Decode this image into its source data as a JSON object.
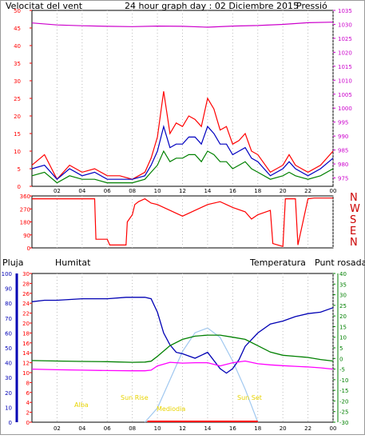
{
  "colors": {
    "wind": "#ff0000",
    "wind_avg": "#0000c0",
    "wind_green": "#008000",
    "pressure": "#cc00cc",
    "direction": "#ff0000",
    "humidity": "#0000b4",
    "temperature": "#008000",
    "dewpoint": "#ff00ff",
    "rain": "#ff0000",
    "solar": "#a0c8f0",
    "sun_labels": "#e8d400",
    "grid": "#bbbbbb"
  },
  "header": {
    "left_title": "Velocitat del vent",
    "center_title": "24 hour graph day : 02 Diciembre 2015",
    "right_title": "Pressió"
  },
  "compass": [
    "N",
    "W",
    "S",
    "E",
    "N"
  ],
  "bottom_header": {
    "rain": "Pluja",
    "humidity": "Humitat",
    "temperature": "Temperatura",
    "dewpoint": "Punt rosada"
  },
  "sun_labels": {
    "twilight_morning": "Alba",
    "sunrise": "Sun Rise",
    "noon": "Mediodia",
    "sunset": "Sun Set"
  },
  "chart_data": [
    {
      "type": "line",
      "title": "24 hour graph day : 02 Diciembre 2015",
      "x_ticks": [
        "02",
        "04",
        "06",
        "08",
        "10",
        "12",
        "14",
        "16",
        "18",
        "20",
        "22",
        "00"
      ],
      "y_left_label": "Velocitat del vent",
      "y_left_ticks": [
        0,
        5,
        10,
        15,
        20,
        25,
        30,
        35,
        40,
        45,
        50
      ],
      "y_left_range": [
        0,
        50
      ],
      "y_right_label": "Pressió",
      "y_right_ticks": [
        975,
        980,
        985,
        990,
        995,
        1000,
        1005,
        1010,
        1015,
        1020,
        1025,
        1030,
        1035
      ],
      "y_right_range": [
        972,
        1035
      ],
      "series": [
        {
          "name": "Velocitat del vent",
          "axis": "left",
          "x_hours": [
            0,
            1,
            2,
            3,
            4,
            5,
            6,
            7,
            8,
            9,
            9.5,
            10,
            10.5,
            11,
            11.5,
            12,
            12.5,
            13,
            13.5,
            14,
            14.5,
            15,
            15.5,
            16,
            16.5,
            17,
            17.5,
            18,
            19,
            20,
            20.5,
            21,
            22,
            23,
            24
          ],
          "values": [
            6,
            9,
            2,
            6,
            4,
            5,
            3,
            3,
            2,
            4,
            8,
            14,
            27,
            15,
            18,
            17,
            20,
            19,
            17,
            25,
            22,
            16,
            17,
            12,
            13,
            15,
            10,
            9,
            4,
            6,
            9,
            6,
            4,
            6,
            10
          ]
        },
        {
          "axis": "left",
          "x_hours": [
            0,
            1,
            2,
            3,
            4,
            5,
            6,
            7,
            8,
            9,
            9.5,
            10,
            10.5,
            11,
            11.5,
            12,
            12.5,
            13,
            13.5,
            14,
            14.5,
            15,
            15.5,
            16,
            16.5,
            17,
            17.5,
            18,
            19,
            20,
            20.5,
            21,
            22,
            23,
            24
          ],
          "values": [
            5,
            6,
            2,
            5,
            3,
            4,
            2,
            2,
            2,
            3,
            6,
            10,
            17,
            11,
            12,
            12,
            14,
            14,
            12,
            17,
            15,
            12,
            12,
            9,
            10,
            11,
            8,
            7,
            3,
            5,
            7,
            5,
            3,
            5,
            8
          ]
        },
        {
          "axis": "left",
          "x_hours": [
            0,
            1,
            2,
            3,
            4,
            5,
            6,
            7,
            8,
            9,
            9.5,
            10,
            10.5,
            11,
            11.5,
            12,
            12.5,
            13,
            13.5,
            14,
            14.5,
            15,
            15.5,
            16,
            16.5,
            17,
            17.5,
            18,
            19,
            20,
            20.5,
            21,
            22,
            23,
            24
          ],
          "values": [
            3,
            4,
            1,
            3,
            2,
            2,
            1,
            1,
            1,
            2,
            4,
            6,
            10,
            7,
            8,
            8,
            9,
            9,
            7,
            10,
            9,
            7,
            7,
            5,
            6,
            7,
            5,
            4,
            2,
            3,
            4,
            3,
            2,
            3,
            5
          ]
        },
        {
          "name": "Pressió",
          "axis": "right",
          "x_hours": [
            0,
            2,
            4,
            6,
            8,
            10,
            12,
            14,
            16,
            18,
            20,
            22,
            24
          ],
          "values": [
            1030.5,
            1029.8,
            1029.5,
            1029.3,
            1029.2,
            1029.4,
            1029.3,
            1029.0,
            1029.4,
            1029.6,
            1030.0,
            1030.6,
            1030.8
          ]
        }
      ]
    },
    {
      "type": "line",
      "y_ticks": [
        0,
        90,
        180,
        270,
        360
      ],
      "y_range": [
        0,
        360
      ],
      "series": [
        {
          "axis": "left",
          "x_hours": [
            0,
            5,
            5.1,
            6,
            6.2,
            7.5,
            7.6,
            8,
            8.2,
            8.5,
            9,
            9.5,
            10,
            11,
            12,
            13,
            14,
            15,
            16,
            17,
            17.5,
            18,
            19,
            19.2,
            20,
            20.2,
            21,
            21.2,
            22,
            22.5,
            24
          ],
          "values": [
            340,
            340,
            60,
            60,
            20,
            20,
            180,
            230,
            300,
            320,
            340,
            310,
            300,
            260,
            220,
            260,
            300,
            320,
            280,
            250,
            200,
            230,
            260,
            30,
            10,
            340,
            340,
            20,
            340,
            345,
            345
          ]
        }
      ]
    },
    {
      "type": "line",
      "y_rain_label": "Pluja",
      "y_rain_ticks": [
        0,
        2,
        4,
        6,
        8,
        10,
        12,
        14,
        16,
        18,
        20,
        22,
        24,
        26,
        28,
        30
      ],
      "y_rain_range": [
        0,
        30
      ],
      "y_humidity_label": "Humitat",
      "y_humidity_ticks": [
        0,
        10,
        20,
        30,
        40,
        50,
        60,
        70,
        80,
        90,
        100
      ],
      "y_humidity_range": [
        0,
        100
      ],
      "y_temp_label": "Temperatura",
      "y_temp_ticks": [
        -30,
        -25,
        -20,
        -15,
        -10,
        -5,
        0,
        5,
        10,
        15,
        20,
        25,
        30,
        35,
        40
      ],
      "y_temp_range": [
        -30,
        40
      ],
      "series": [
        {
          "name": "Humitat",
          "axis": "humidity",
          "x_hours": [
            0,
            1,
            2,
            4,
            6,
            7.5,
            8,
            9,
            9.5,
            10,
            10.5,
            11,
            11.5,
            12,
            13,
            14,
            15,
            15.5,
            16,
            16.5,
            17,
            18,
            19,
            20,
            21,
            22,
            23,
            24
          ],
          "values": [
            81,
            82,
            82,
            83,
            83,
            84,
            84,
            84,
            83,
            74,
            60,
            52,
            47,
            46,
            43,
            47,
            36,
            33,
            36,
            42,
            51,
            60,
            66,
            68,
            71,
            73,
            74,
            77
          ]
        },
        {
          "name": "Temperatura",
          "axis": "temp",
          "x_hours": [
            0,
            2,
            4,
            6,
            8,
            9,
            9.5,
            10,
            11,
            12,
            13,
            14,
            15,
            16,
            17,
            18,
            19,
            20,
            21,
            22,
            23,
            24
          ],
          "values": [
            -1,
            -1.2,
            -1.4,
            -1.5,
            -1.8,
            -1.7,
            -1.3,
            1,
            6,
            9,
            10.5,
            11,
            11,
            10,
            9,
            6,
            3,
            1.5,
            1,
            0.5,
            -0.5,
            -1.2
          ]
        },
        {
          "name": "Punt rosada",
          "axis": "temp",
          "x_hours": [
            0,
            2,
            4,
            6,
            8,
            9,
            9.5,
            10,
            11,
            12,
            13,
            14,
            15,
            16,
            17,
            18,
            19,
            20,
            21,
            22,
            23,
            24
          ],
          "values": [
            -5,
            -5.3,
            -5.5,
            -5.7,
            -5.8,
            -5.8,
            -5.5,
            -3.5,
            -1.8,
            -2.2,
            -2,
            -2,
            -3.5,
            -2,
            -1.2,
            -2.5,
            -3,
            -3.4,
            -3.7,
            -4,
            -4.4,
            -5
          ]
        },
        {
          "type": "area",
          "axis": "solar",
          "x_hours": [
            9,
            10,
            11,
            12,
            13,
            14,
            15,
            16,
            17,
            18
          ],
          "values": [
            0,
            0.15,
            0.45,
            0.75,
            0.95,
            1.0,
            0.9,
            0.65,
            0.35,
            0
          ]
        }
      ]
    }
  ]
}
